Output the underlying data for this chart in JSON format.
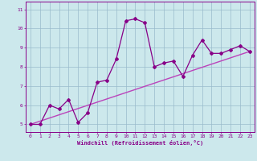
{
  "title": "",
  "xlabel": "Windchill (Refroidissement éolien,°C)",
  "ylabel": "",
  "bg_color": "#cce8ec",
  "line_color": "#880088",
  "trend_color": "#bb44bb",
  "grid_color": "#99bbcc",
  "xlim": [
    -0.5,
    23.5
  ],
  "ylim": [
    4.6,
    11.4
  ],
  "xticks": [
    0,
    1,
    2,
    3,
    4,
    5,
    6,
    7,
    8,
    9,
    10,
    11,
    12,
    13,
    14,
    15,
    16,
    17,
    18,
    19,
    20,
    21,
    22,
    23
  ],
  "yticks": [
    5,
    6,
    7,
    8,
    9,
    10,
    11
  ],
  "data_x": [
    0,
    1,
    2,
    3,
    4,
    5,
    6,
    7,
    8,
    9,
    10,
    11,
    12,
    13,
    14,
    15,
    16,
    17,
    18,
    19,
    20,
    21,
    22,
    23
  ],
  "data_y": [
    5.0,
    5.0,
    6.0,
    5.8,
    6.3,
    5.1,
    5.6,
    7.2,
    7.3,
    8.4,
    10.4,
    10.5,
    10.3,
    8.0,
    8.2,
    8.3,
    7.5,
    8.6,
    9.4,
    8.7,
    8.7,
    8.9,
    9.1,
    8.8
  ],
  "trend_x": [
    0,
    23
  ],
  "trend_y": [
    5.0,
    8.8
  ]
}
